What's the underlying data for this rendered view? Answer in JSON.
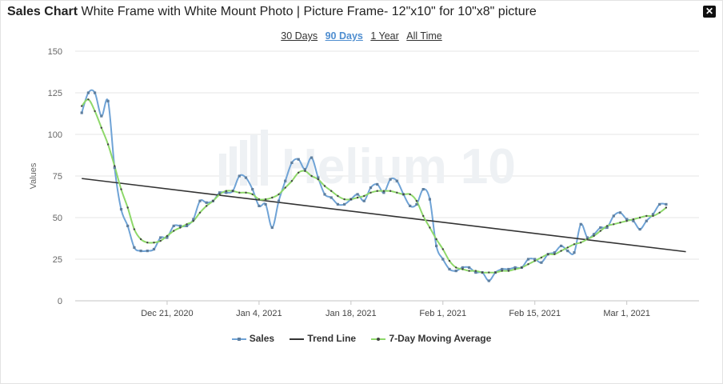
{
  "title": {
    "bold": "Sales Chart",
    "rest": "White Frame with White Mount Photo | Picture Frame- 12\"x10\" for 10\"x8\" picture"
  },
  "close_icon": "close-icon",
  "ranges": [
    {
      "label": "30 Days",
      "active": false
    },
    {
      "label": "90 Days",
      "active": true
    },
    {
      "label": "1 Year",
      "active": false
    },
    {
      "label": "All Time",
      "active": false
    }
  ],
  "watermark": "Helium 10",
  "colors": {
    "sales": "#6fa3d6",
    "sales_marker": "#5f7f9f",
    "trend": "#333333",
    "moving_average": "#8ed86a",
    "ma_marker": "#444444",
    "grid": "#e6e6e6",
    "range_active": "#4f8ed0"
  },
  "chart_data": {
    "type": "line",
    "ylabel": "Values",
    "ylim": [
      0,
      150
    ],
    "yticks": [
      0,
      25,
      50,
      75,
      100,
      125,
      150
    ],
    "xlim": [
      "2020-12-07",
      "2021-03-12"
    ],
    "xticks": [
      {
        "date": "2020-12-21",
        "label": "Dec 21, 2020"
      },
      {
        "date": "2021-01-04",
        "label": "Jan 4, 2021"
      },
      {
        "date": "2021-01-18",
        "label": "Jan 18, 2021"
      },
      {
        "date": "2021-02-01",
        "label": "Feb 1, 2021"
      },
      {
        "date": "2021-02-15",
        "label": "Feb 15, 2021"
      },
      {
        "date": "2021-03-01",
        "label": "Mar 1, 2021"
      }
    ],
    "series": [
      {
        "name": "Sales",
        "start_date": "2020-12-08",
        "values": [
          113,
          125,
          125,
          111,
          120,
          80,
          55,
          45,
          32,
          30,
          30,
          31,
          38,
          38,
          45,
          45,
          45,
          49,
          60,
          59,
          60,
          65,
          65,
          66,
          75,
          74,
          67,
          57,
          58,
          44,
          60,
          72,
          83,
          85,
          79,
          86,
          74,
          64,
          62,
          58,
          58,
          61,
          64,
          60,
          68,
          70,
          65,
          73,
          72,
          64,
          57,
          58,
          67,
          61,
          33,
          25,
          19,
          18,
          20,
          20,
          17,
          17,
          12,
          17,
          19,
          19,
          20,
          20,
          25,
          25,
          23,
          28,
          29,
          33,
          30,
          29,
          46,
          38,
          40,
          44,
          44,
          51,
          53,
          49,
          48,
          43,
          48,
          52,
          58,
          58
        ]
      },
      {
        "name": "Trend Line",
        "start_date": "2020-12-08",
        "end_date": "2021-03-10",
        "values": [
          73.5,
          29.5
        ]
      },
      {
        "name": "7-Day Moving Average",
        "start_date": "2020-12-08",
        "values": [
          117,
          121,
          114,
          104,
          94,
          81,
          67,
          56,
          43,
          37,
          35,
          35,
          36,
          39,
          42,
          44,
          46,
          48,
          53,
          57,
          60,
          64,
          66,
          66,
          65,
          65,
          64,
          61,
          61,
          62,
          64,
          68,
          72,
          77,
          78,
          75,
          73,
          69,
          66,
          63,
          61,
          61,
          62,
          63,
          65,
          66,
          66,
          66,
          65,
          64,
          64,
          60,
          51,
          44,
          37,
          31,
          24,
          20,
          19,
          18,
          18,
          17,
          17,
          17,
          18,
          18,
          19,
          20,
          22,
          24,
          26,
          28,
          28,
          30,
          32,
          34,
          35,
          37,
          39,
          42,
          45,
          46,
          47,
          48,
          49,
          50,
          51,
          51,
          53,
          56
        ]
      }
    ]
  }
}
